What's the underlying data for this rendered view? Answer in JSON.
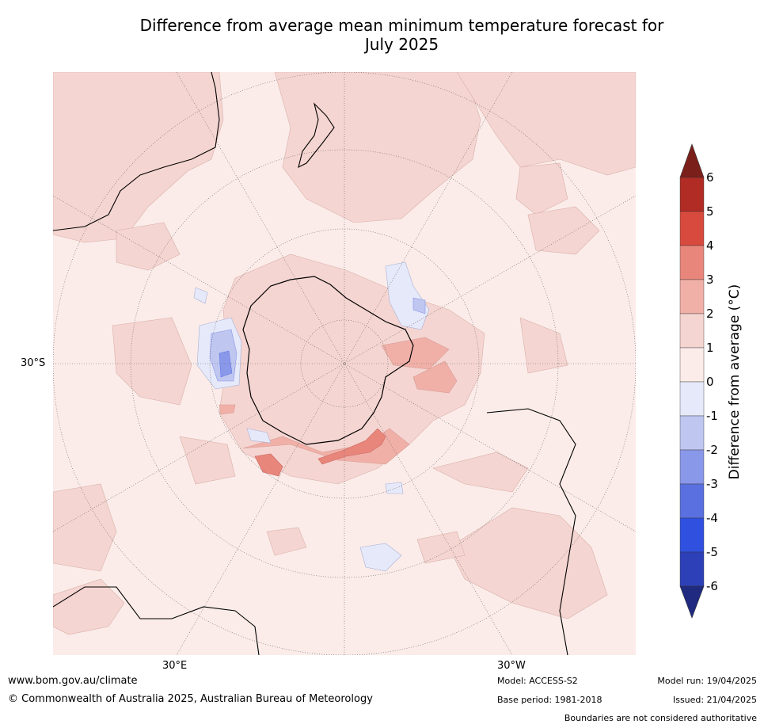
{
  "title_line1": "Difference from average mean minimum temperature forecast for",
  "title_line2": "July 2025",
  "map_labels": {
    "lat_label": "30°S",
    "lon_east": "30°E",
    "lon_west": "30°W"
  },
  "colorbar": {
    "label": "Difference from average (°C)",
    "ticks": [
      "6",
      "5",
      "4",
      "3",
      "2",
      "1",
      "0",
      "-1",
      "-2",
      "-3",
      "-4",
      "-5",
      "-6"
    ],
    "colors": [
      "#7b1f1a",
      "#b02c25",
      "#d94a3e",
      "#e9867c",
      "#f0b0a8",
      "#f5d5d1",
      "#fbece9",
      "#e6e9f9",
      "#bfc6f0",
      "#8a98ea",
      "#5a70e0",
      "#3050e0",
      "#2d40b8",
      "#1f2a80"
    ]
  },
  "footer": {
    "website": "www.bom.gov.au/climate",
    "copyright": "© Commonwealth of Australia 2025, Australian Bureau of Meteorology",
    "model": "Model: ACCESS-S2",
    "base_period": "Base period: 1981-2018",
    "model_run": "Model run: 19/04/2025",
    "issued": "Issued: 21/04/2025",
    "disclaimer": "Boundaries are not considered authoritative"
  }
}
